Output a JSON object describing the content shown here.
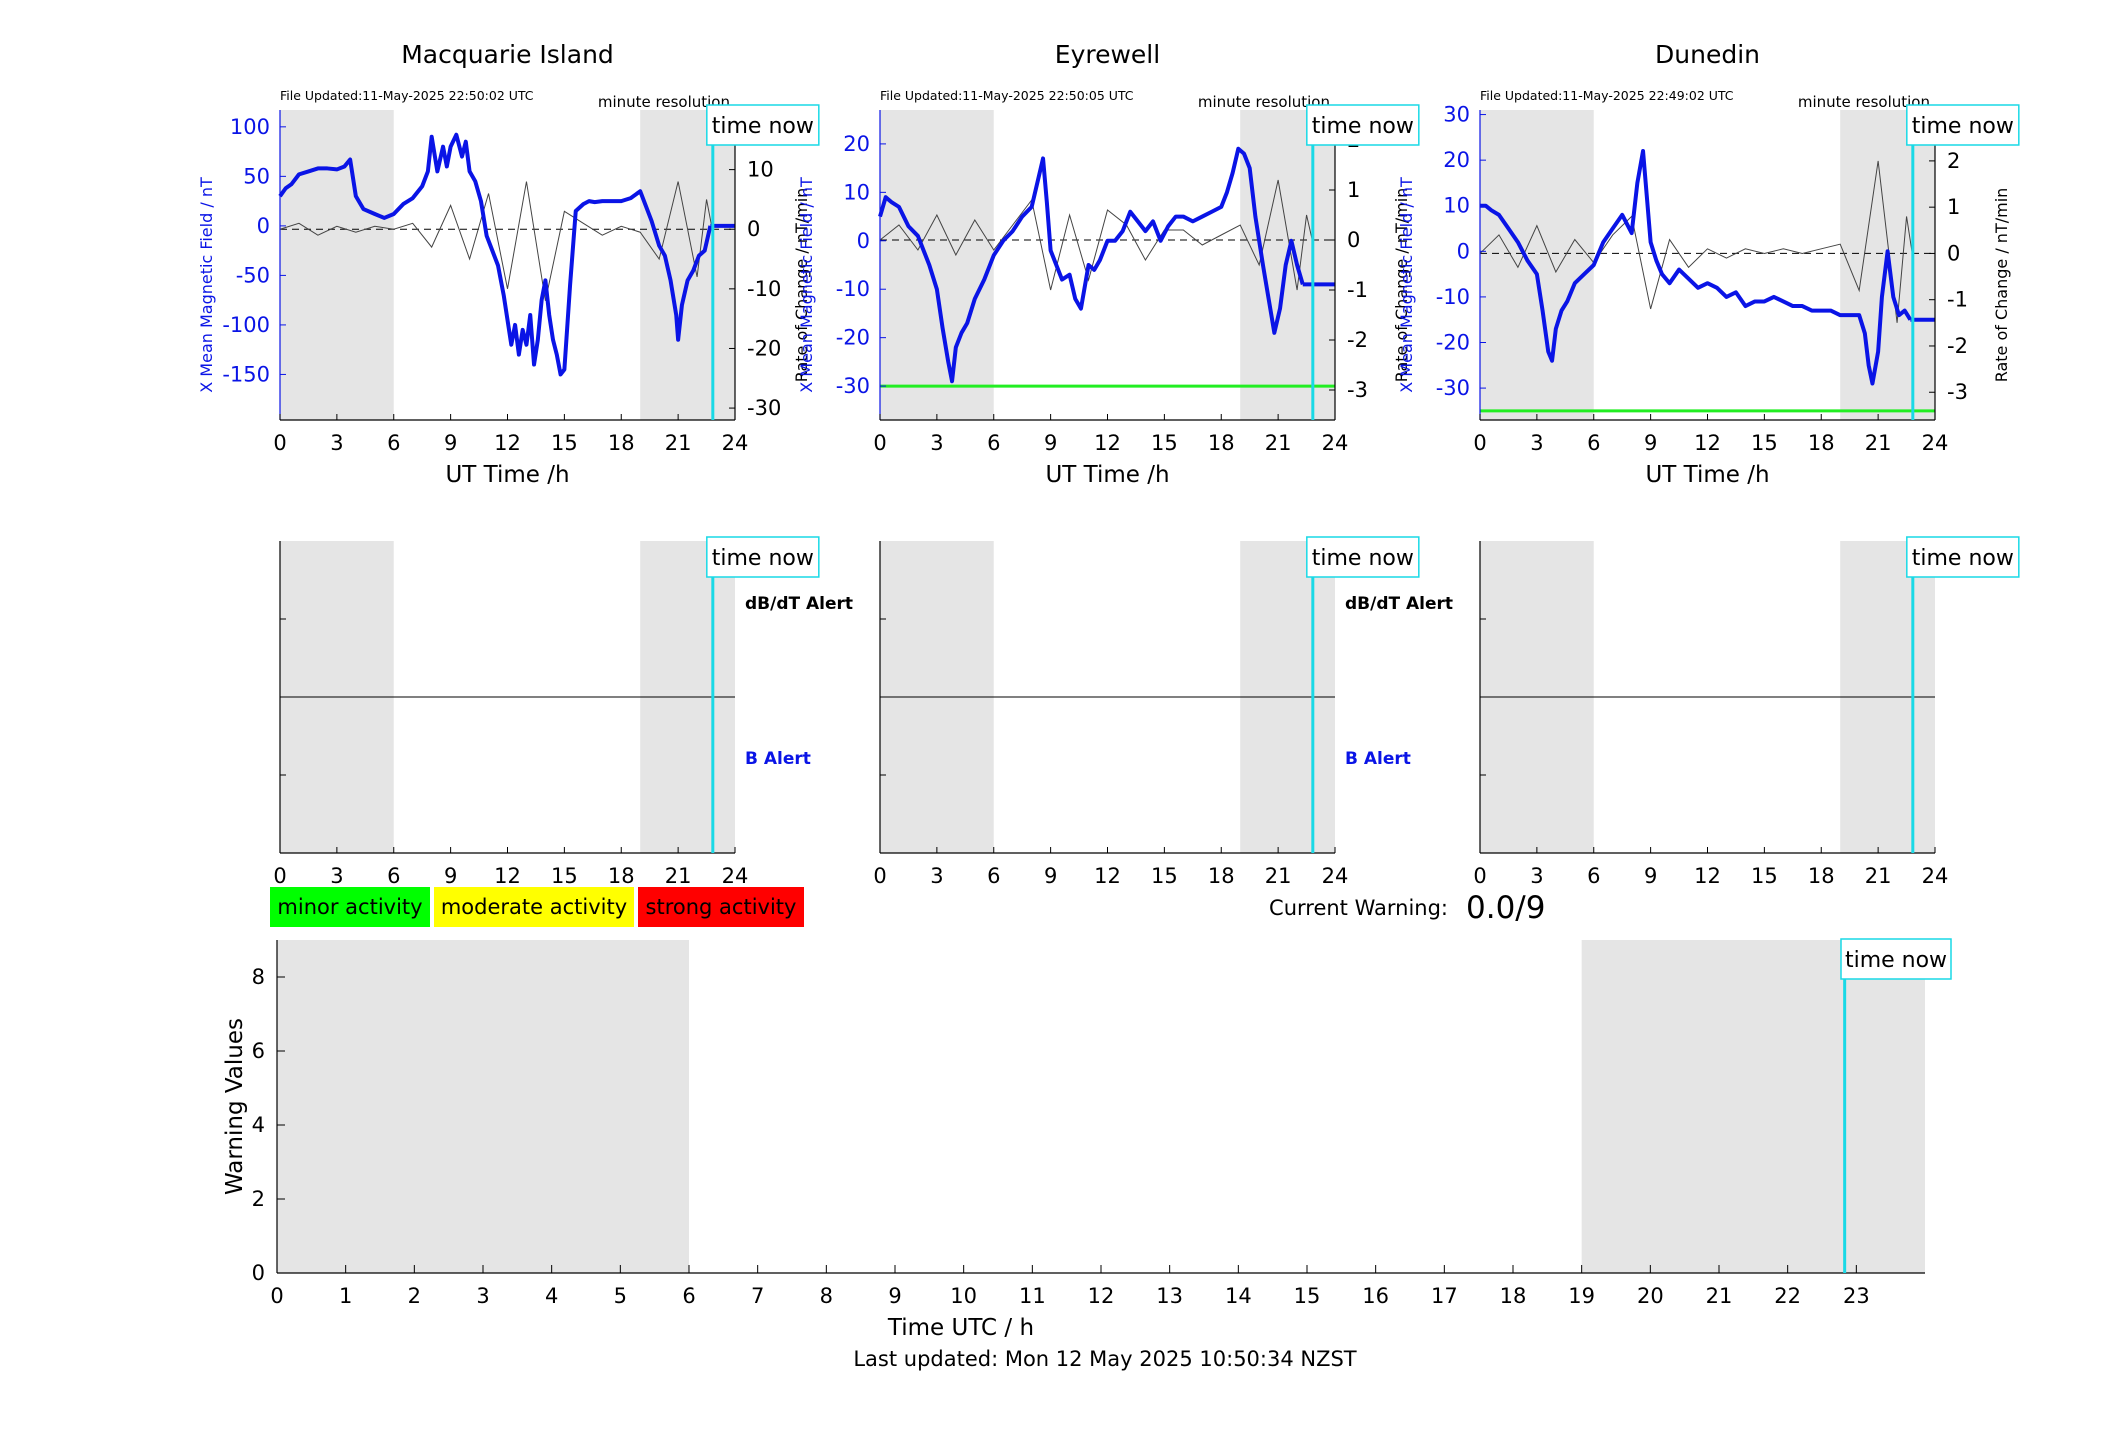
{
  "figure": {
    "footer": "Last updated: Mon 12 May 2025 10:50:34 NZST",
    "time_now_label": "time now",
    "time_now_hour": 22.83,
    "colors": {
      "field": "#0a14e6",
      "rate": "#444444",
      "time_now": "#19d9e6",
      "night_shade": "#e5e5e5",
      "threshold": "#22ee22"
    }
  },
  "chart_data": [
    {
      "type": "line",
      "title": "Macquarie Island",
      "file_updated": "File Updated:11-May-2025 22:50:02 UTC",
      "resolution": "minute resolution",
      "xlabel": "UT Time /h",
      "ylabel_left": "X Mean Magnetic Field / nT",
      "ylabel_right": "Rate of Change / nT/min",
      "xlim": [
        0,
        24
      ],
      "xticks": [
        0,
        3,
        6,
        9,
        12,
        15,
        18,
        21,
        24
      ],
      "ylim_left": [
        -196,
        117
      ],
      "yticks_left": [
        -150,
        -100,
        -50,
        0,
        50,
        100
      ],
      "ylim_right": [
        -32,
        20
      ],
      "yticks_right": [
        -30,
        -20,
        -10,
        0,
        10
      ],
      "night_shading": [
        [
          0,
          6
        ],
        [
          19,
          24
        ]
      ],
      "series": [
        {
          "axis": "left",
          "x": [
            0,
            0.3,
            0.6,
            1,
            1.5,
            2,
            2.5,
            3,
            3.4,
            3.7,
            4,
            4.4,
            5,
            5.5,
            6,
            6.5,
            7,
            7.5,
            7.8,
            8,
            8.3,
            8.6,
            8.8,
            9,
            9.3,
            9.6,
            9.8,
            10,
            10.3,
            10.6,
            10.9,
            11.2,
            11.5,
            11.8,
            12,
            12.2,
            12.4,
            12.6,
            12.8,
            13,
            13.2,
            13.4,
            13.6,
            13.8,
            14,
            14.2,
            14.4,
            14.6,
            14.8,
            15,
            15.3,
            15.6,
            16,
            16.3,
            16.6,
            17,
            17.5,
            18,
            18.5,
            19,
            19.3,
            19.6,
            20,
            20.3,
            20.6,
            20.9,
            21,
            21.2,
            21.5,
            21.8,
            22.1,
            22.4,
            22.7
          ],
          "y": [
            30,
            38,
            42,
            52,
            55,
            58,
            58,
            57,
            60,
            67,
            30,
            17,
            12,
            8,
            12,
            22,
            28,
            40,
            55,
            90,
            55,
            80,
            60,
            80,
            92,
            70,
            85,
            55,
            45,
            25,
            -10,
            -25,
            -40,
            -70,
            -95,
            -120,
            -100,
            -130,
            -105,
            -120,
            -90,
            -140,
            -115,
            -75,
            -55,
            -90,
            -115,
            -130,
            -150,
            -145,
            -60,
            15,
            22,
            25,
            24,
            25,
            25,
            25,
            28,
            35,
            20,
            5,
            -20,
            -30,
            -55,
            -90,
            -115,
            -80,
            -55,
            -45,
            -30,
            -25,
            0
          ]
        },
        {
          "axis": "right",
          "x": [
            0,
            1,
            2,
            3,
            4,
            5,
            6,
            7,
            8,
            9,
            10,
            11,
            12,
            13,
            14,
            15,
            16,
            17,
            18,
            19,
            20,
            21,
            22,
            22.5,
            22.8
          ],
          "y": [
            0,
            1,
            -1,
            0.5,
            -0.5,
            0.5,
            0,
            1,
            -3,
            4,
            -5,
            6,
            -10,
            8,
            -12,
            3,
            1,
            -1,
            0.5,
            -0.5,
            -5,
            8,
            -8,
            5,
            0
          ]
        }
      ]
    },
    {
      "type": "line",
      "title": "Eyrewell",
      "file_updated": "File Updated:11-May-2025 22:50:05 UTC",
      "resolution": "minute resolution",
      "xlabel": "UT Time /h",
      "ylabel_left": "X Mean Magnetic Field / nT",
      "ylabel_right": "Rate of Change / nT/min",
      "xlim": [
        0,
        24
      ],
      "xticks": [
        0,
        3,
        6,
        9,
        12,
        15,
        18,
        21,
        24
      ],
      "ylim_left": [
        -37,
        27
      ],
      "yticks_left": [
        -30,
        -20,
        -10,
        0,
        10,
        20
      ],
      "ylim_right": [
        -3.6,
        2.6
      ],
      "yticks_right": [
        -3,
        -2,
        -1,
        0,
        1,
        2
      ],
      "threshold_left": -30,
      "night_shading": [
        [
          0,
          6
        ],
        [
          19,
          24
        ]
      ],
      "series": [
        {
          "axis": "left",
          "x": [
            0,
            0.3,
            0.6,
            1,
            1.5,
            2,
            2.3,
            2.6,
            3,
            3.3,
            3.6,
            3.8,
            4,
            4.3,
            4.6,
            5,
            5.5,
            6,
            6.5,
            7,
            7.5,
            8,
            8.3,
            8.6,
            8.8,
            9,
            9.3,
            9.6,
            10,
            10.3,
            10.6,
            11,
            11.3,
            11.6,
            12,
            12.4,
            12.8,
            13.2,
            13.6,
            14,
            14.4,
            14.8,
            15.2,
            15.6,
            16,
            16.5,
            17,
            17.5,
            18,
            18.3,
            18.6,
            18.9,
            19.2,
            19.5,
            19.8,
            20.2,
            20.5,
            20.8,
            21.1,
            21.4,
            21.7,
            22,
            22.3
          ],
          "y": [
            5,
            9,
            8,
            7,
            3,
            1,
            -2,
            -5,
            -10,
            -18,
            -25,
            -29,
            -22,
            -19,
            -17,
            -12,
            -8,
            -3,
            0,
            2,
            5,
            7,
            12,
            17,
            8,
            -2,
            -5,
            -8,
            -7,
            -12,
            -14,
            -5,
            -6,
            -4,
            0,
            0,
            2,
            6,
            4,
            2,
            4,
            0,
            3,
            5,
            5,
            4,
            5,
            6,
            7,
            10,
            14,
            19,
            18,
            15,
            5,
            -5,
            -12,
            -19,
            -14,
            -5,
            0,
            -5,
            -9
          ]
        },
        {
          "axis": "right",
          "x": [
            0,
            1,
            2,
            3,
            4,
            5,
            6,
            7,
            8,
            9,
            10,
            11,
            12,
            13,
            14,
            15,
            16,
            17,
            18,
            19,
            20,
            21,
            22,
            22.5,
            22.8
          ],
          "y": [
            0,
            0.3,
            -0.2,
            0.5,
            -0.3,
            0.4,
            -0.2,
            0.3,
            0.8,
            -1,
            0.5,
            -0.8,
            0.6,
            0.3,
            -0.4,
            0.2,
            0.2,
            -0.1,
            0.1,
            0.3,
            -0.5,
            1.2,
            -1,
            0.5,
            0
          ]
        }
      ]
    },
    {
      "type": "line",
      "title": "Dunedin",
      "file_updated": "File Updated:11-May-2025 22:49:02 UTC",
      "resolution": "minute resolution",
      "xlabel": "UT Time /h",
      "ylabel_left": "X Mean Magnetic Field / nT",
      "ylabel_right": "Rate of Change / nT/min",
      "xlim": [
        0,
        24
      ],
      "xticks": [
        0,
        3,
        6,
        9,
        12,
        15,
        18,
        21,
        24
      ],
      "ylim_left": [
        -37,
        31
      ],
      "yticks_left": [
        -30,
        -20,
        -10,
        0,
        10,
        20,
        30
      ],
      "ylim_right": [
        -3.6,
        3.1
      ],
      "yticks_right": [
        -3,
        -2,
        -1,
        0,
        1,
        2,
        3
      ],
      "threshold_left": -35,
      "night_shading": [
        [
          0,
          6
        ],
        [
          19,
          24
        ]
      ],
      "series": [
        {
          "axis": "left",
          "x": [
            0,
            0.3,
            0.6,
            1,
            1.5,
            2,
            2.5,
            3,
            3.3,
            3.6,
            3.8,
            4,
            4.3,
            4.6,
            5,
            5.5,
            6,
            6.5,
            7,
            7.5,
            8,
            8.3,
            8.6,
            8.8,
            9,
            9.3,
            9.6,
            10,
            10.5,
            11,
            11.5,
            12,
            12.5,
            13,
            13.5,
            14,
            14.5,
            15,
            15.5,
            16,
            16.5,
            17,
            17.5,
            18,
            18.5,
            19,
            19.5,
            20,
            20.3,
            20.5,
            20.7,
            21,
            21.2,
            21.5,
            21.8,
            22.1,
            22.4,
            22.7
          ],
          "y": [
            10,
            10,
            9,
            8,
            5,
            2,
            -2,
            -5,
            -13,
            -22,
            -24,
            -17,
            -13,
            -11,
            -7,
            -5,
            -3,
            2,
            5,
            8,
            4,
            15,
            22,
            12,
            2,
            -2,
            -5,
            -7,
            -4,
            -6,
            -8,
            -7,
            -8,
            -10,
            -9,
            -12,
            -11,
            -11,
            -10,
            -11,
            -12,
            -12,
            -13,
            -13,
            -13,
            -14,
            -14,
            -14,
            -18,
            -25,
            -29,
            -22,
            -10,
            0,
            -10,
            -14,
            -13,
            -15
          ]
        },
        {
          "axis": "right",
          "x": [
            0,
            1,
            2,
            3,
            4,
            5,
            6,
            7,
            8,
            9,
            10,
            11,
            12,
            13,
            14,
            15,
            16,
            17,
            18,
            19,
            20,
            21,
            22,
            22.5,
            22.8
          ],
          "y": [
            0,
            0.4,
            -0.3,
            0.6,
            -0.4,
            0.3,
            -0.2,
            0.4,
            0.8,
            -1.2,
            0.3,
            -0.3,
            0.1,
            -0.1,
            0.1,
            0,
            0.1,
            0,
            0.1,
            0.2,
            -0.8,
            2,
            -1.5,
            0.8,
            0
          ]
        }
      ]
    },
    {
      "type": "line",
      "title": "",
      "xlim": [
        0,
        24
      ],
      "xticks": [
        0,
        3,
        6,
        9,
        12,
        15,
        18,
        21,
        24
      ],
      "upper_label": "dB/dT Alert",
      "lower_label": "B Alert",
      "night_shading": [
        [
          0,
          6
        ],
        [
          19,
          24
        ]
      ],
      "series": []
    },
    {
      "type": "line",
      "title": "",
      "xlim": [
        0,
        24
      ],
      "xticks": [
        0,
        3,
        6,
        9,
        12,
        15,
        18,
        21,
        24
      ],
      "upper_label": "dB/dT Alert",
      "lower_label": "B Alert",
      "night_shading": [
        [
          0,
          6
        ],
        [
          19,
          24
        ]
      ],
      "series": []
    },
    {
      "type": "line",
      "title": "",
      "xlim": [
        0,
        24
      ],
      "xticks": [
        0,
        3,
        6,
        9,
        12,
        15,
        18,
        21,
        24
      ],
      "upper_label": "",
      "lower_label": "",
      "night_shading": [
        [
          0,
          6
        ],
        [
          19,
          24
        ]
      ],
      "series": []
    },
    {
      "type": "bar",
      "title": "",
      "xlabel": "Time UTC / h",
      "ylabel": "Warning Values",
      "xlim": [
        0,
        24
      ],
      "xticks": [
        0,
        1,
        2,
        3,
        4,
        5,
        6,
        7,
        8,
        9,
        10,
        11,
        12,
        13,
        14,
        15,
        16,
        17,
        18,
        19,
        20,
        21,
        22,
        23
      ],
      "ylim": [
        0,
        9
      ],
      "yticks": [
        0,
        2,
        4,
        6,
        8
      ],
      "night_shading": [
        [
          0,
          6
        ],
        [
          19,
          24
        ]
      ],
      "legend": [
        {
          "label": "minor activity",
          "color": "#00ff00"
        },
        {
          "label": "moderate activity",
          "color": "#ffff00"
        },
        {
          "label": "strong activity",
          "color": "#ff0000"
        }
      ],
      "current_warning_label": "Current Warning:",
      "current_warning_value": "0.0/9",
      "series": []
    }
  ]
}
